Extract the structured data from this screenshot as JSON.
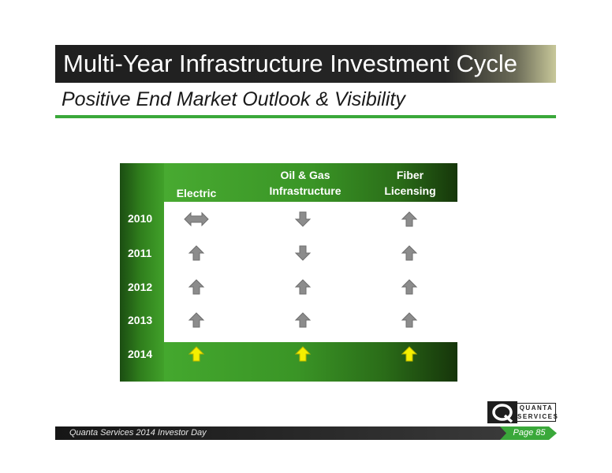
{
  "slide": {
    "title": "Multi-Year Infrastructure Investment Cycle",
    "subtitle": "Positive End Market Outlook & Visibility"
  },
  "table": {
    "columns": [
      {
        "label_line1": "",
        "label_line2": "Electric"
      },
      {
        "label_line1": "Oil & Gas",
        "label_line2": "Infrastructure"
      },
      {
        "label_line1": "Fiber",
        "label_line2": "Licensing"
      }
    ],
    "rows": [
      {
        "year": "2010",
        "outlook": [
          "flat",
          "down",
          "up"
        ]
      },
      {
        "year": "2011",
        "outlook": [
          "up",
          "down",
          "up"
        ]
      },
      {
        "year": "2012",
        "outlook": [
          "up",
          "up",
          "up"
        ]
      },
      {
        "year": "2013",
        "outlook": [
          "up",
          "up",
          "up"
        ]
      },
      {
        "year": "2014",
        "outlook": [
          "up",
          "up",
          "up"
        ]
      }
    ],
    "colors": {
      "arrow_gray": "#8c8c8c",
      "arrow_highlight": "#f4f000",
      "band_green": "#3a9526"
    }
  },
  "logo": {
    "line1": "QUANTA",
    "line2": "SERVICES"
  },
  "footer": {
    "event": "Quanta Services 2014 Investor Day",
    "page": "Page 85"
  }
}
